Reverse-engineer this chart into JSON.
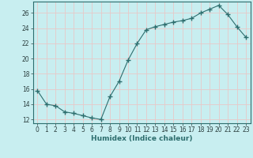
{
  "x": [
    0,
    1,
    2,
    3,
    4,
    5,
    6,
    7,
    8,
    9,
    10,
    11,
    12,
    13,
    14,
    15,
    16,
    17,
    18,
    19,
    20,
    21,
    22,
    23
  ],
  "y": [
    15.8,
    14.0,
    13.8,
    13.0,
    12.8,
    12.5,
    12.2,
    12.0,
    15.0,
    17.0,
    19.8,
    22.0,
    23.8,
    24.2,
    24.5,
    24.8,
    25.0,
    25.3,
    26.0,
    26.5,
    27.0,
    25.8,
    24.2,
    22.8
  ],
  "line_color": "#2d6e6e",
  "marker": "+",
  "marker_size": 4,
  "background_color": "#c8eef0",
  "grid_color": "#e8c8c8",
  "xlabel": "Humidex (Indice chaleur)",
  "xlim": [
    -0.5,
    23.5
  ],
  "ylim": [
    11.5,
    27.5
  ],
  "yticks": [
    12,
    14,
    16,
    18,
    20,
    22,
    24,
    26
  ],
  "xticks": [
    0,
    1,
    2,
    3,
    4,
    5,
    6,
    7,
    8,
    9,
    10,
    11,
    12,
    13,
    14,
    15,
    16,
    17,
    18,
    19,
    20,
    21,
    22,
    23
  ],
  "tick_fontsize": 5.5,
  "xlabel_fontsize": 6.5
}
